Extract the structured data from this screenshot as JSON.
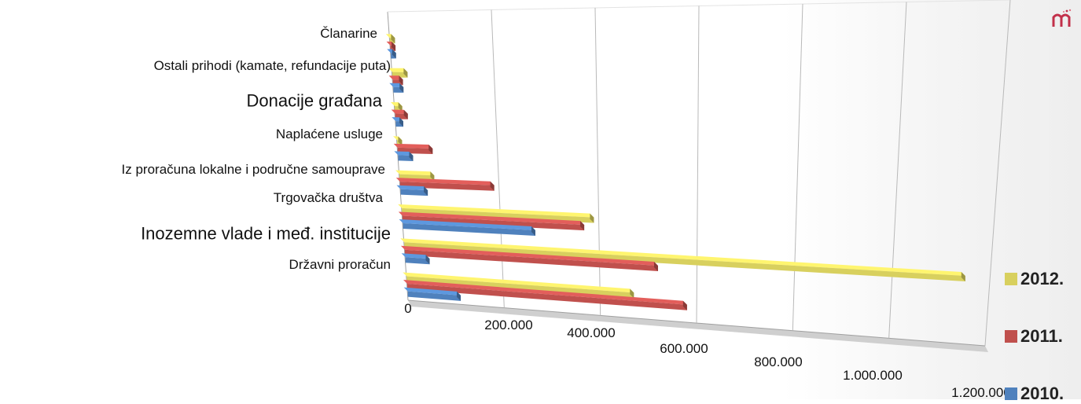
{
  "chart_data": {
    "type": "bar",
    "orientation": "horizontal",
    "style": "3d",
    "categories": [
      "Državni proračun",
      "Inozemne vlade i međ. institucije",
      "Trgovačka društva",
      "Iz proračuna lokalne i područne samouprave",
      "Naplaćene usluge",
      "Donacije građana",
      "Ostali prihodi (kamate, refundacije puta)",
      "Članarine"
    ],
    "series": [
      {
        "name": "2010.",
        "color": "#4F81BD",
        "values": [
          110000,
          50000,
          270000,
          55000,
          30000,
          15000,
          20000,
          10000
        ]
      },
      {
        "name": "2011.",
        "color": "#C0504D",
        "values": [
          580000,
          520000,
          370000,
          190000,
          70000,
          25000,
          20000,
          10000
        ]
      },
      {
        "name": "2012.",
        "color": "#D8D05E",
        "values": [
          470000,
          1150000,
          390000,
          70000,
          10000,
          15000,
          30000,
          10000
        ]
      }
    ],
    "xlim": [
      0,
      1200000
    ],
    "ticks": [
      "0",
      "200.000",
      "400.000",
      "600.000",
      "800.000",
      "1.000.000",
      "1.200.000"
    ],
    "grid": true,
    "legend_position": "bottom-right",
    "legend_order": [
      "2012.",
      "2011.",
      "2010."
    ],
    "title": "",
    "xlabel": "",
    "ylabel": ""
  }
}
